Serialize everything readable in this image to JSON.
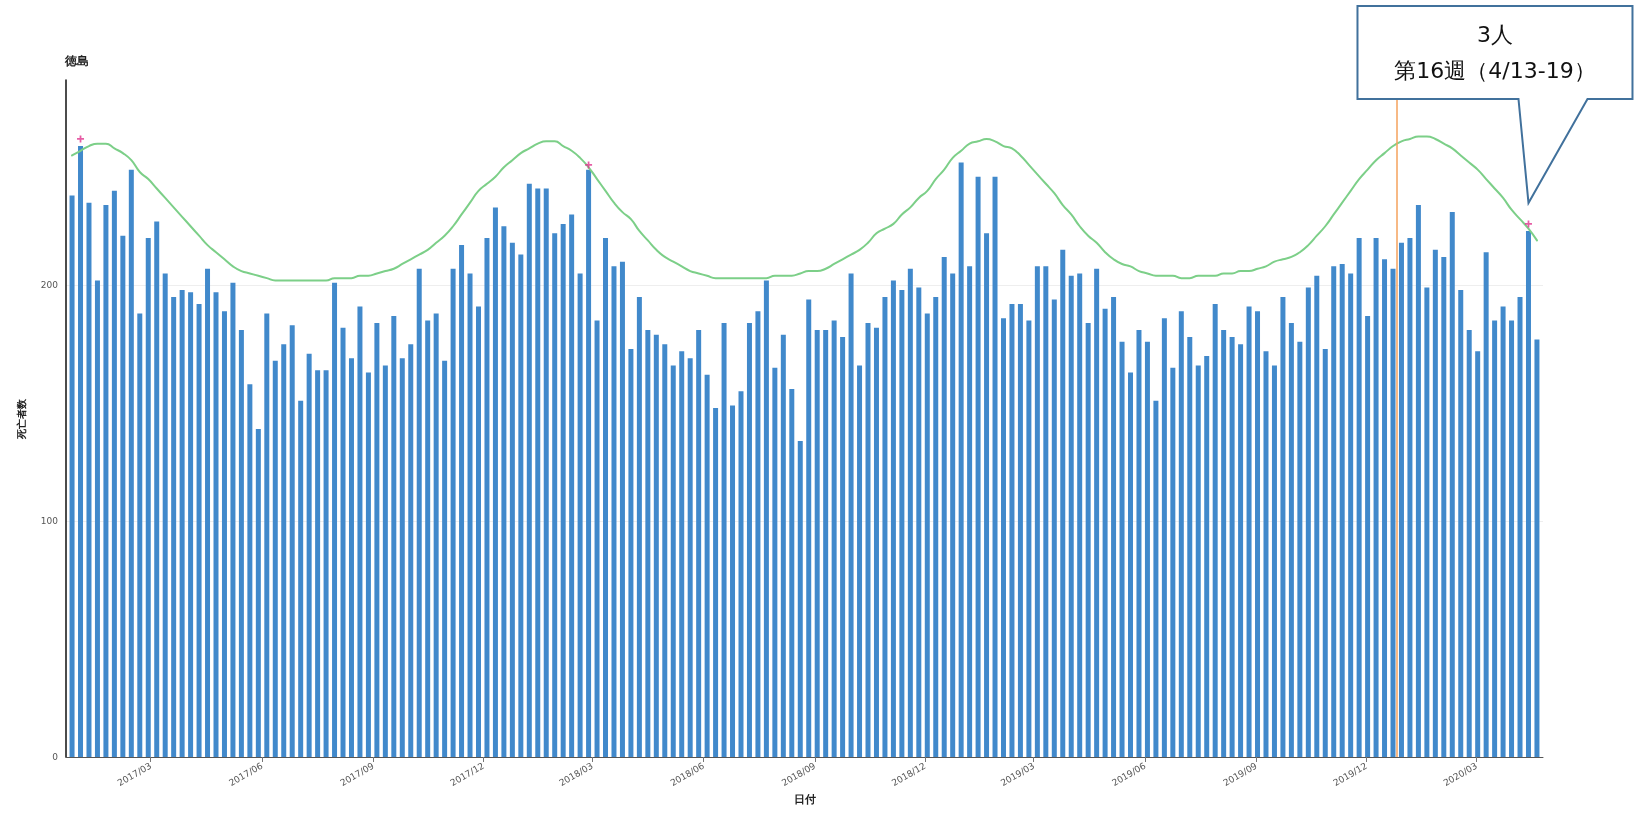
{
  "chart_data": {
    "type": "bar",
    "title": "徳島",
    "xlabel": "日付",
    "ylabel": "死亡者数",
    "x": [
      "2016-12-26",
      "2017-01-02",
      "2017-01-09",
      "2017-01-16",
      "2017-01-23",
      "2017-01-30",
      "2017-02-06",
      "2017-02-13",
      "2017-02-20",
      "2017-02-27",
      "2017-03-06",
      "2017-03-13",
      "2017-03-20",
      "2017-03-27",
      "2017-04-03",
      "2017-04-10",
      "2017-04-17",
      "2017-04-24",
      "2017-05-01",
      "2017-05-08",
      "2017-05-15",
      "2017-05-22",
      "2017-05-29",
      "2017-06-05",
      "2017-06-12",
      "2017-06-19",
      "2017-06-26",
      "2017-07-03",
      "2017-07-10",
      "2017-07-17",
      "2017-07-24",
      "2017-07-31",
      "2017-08-07",
      "2017-08-14",
      "2017-08-21",
      "2017-08-28",
      "2017-09-04",
      "2017-09-11",
      "2017-09-18",
      "2017-09-25",
      "2017-10-02",
      "2017-10-09",
      "2017-10-16",
      "2017-10-23",
      "2017-10-30",
      "2017-11-06",
      "2017-11-13",
      "2017-11-20",
      "2017-11-27",
      "2017-12-04",
      "2017-12-11",
      "2017-12-18",
      "2017-12-25",
      "2018-01-01",
      "2018-01-08",
      "2018-01-15",
      "2018-01-22",
      "2018-01-29",
      "2018-02-05",
      "2018-02-12",
      "2018-02-19",
      "2018-02-26",
      "2018-03-05",
      "2018-03-12",
      "2018-03-19",
      "2018-03-26",
      "2018-04-02",
      "2018-04-09",
      "2018-04-16",
      "2018-04-23",
      "2018-04-30",
      "2018-05-07",
      "2018-05-14",
      "2018-05-21",
      "2018-05-28",
      "2018-06-04",
      "2018-06-11",
      "2018-06-18",
      "2018-06-25",
      "2018-07-02",
      "2018-07-09",
      "2018-07-16",
      "2018-07-23",
      "2018-07-30",
      "2018-08-06",
      "2018-08-13",
      "2018-08-20",
      "2018-08-27",
      "2018-09-03",
      "2018-09-10",
      "2018-09-17",
      "2018-09-24",
      "2018-10-01",
      "2018-10-08",
      "2018-10-15",
      "2018-10-22",
      "2018-10-29",
      "2018-11-05",
      "2018-11-12",
      "2018-11-19",
      "2018-11-26",
      "2018-12-03",
      "2018-12-10",
      "2018-12-17",
      "2018-12-24",
      "2018-12-31",
      "2019-01-07",
      "2019-01-14",
      "2019-01-21",
      "2019-01-28",
      "2019-02-04",
      "2019-02-11",
      "2019-02-18",
      "2019-02-25",
      "2019-03-04",
      "2019-03-11",
      "2019-03-18",
      "2019-03-25",
      "2019-04-01",
      "2019-04-08",
      "2019-04-15",
      "2019-04-22",
      "2019-04-29",
      "2019-05-06",
      "2019-05-13",
      "2019-05-20",
      "2019-05-27",
      "2019-06-03",
      "2019-06-10",
      "2019-06-17",
      "2019-06-24",
      "2019-07-01",
      "2019-07-08",
      "2019-07-15",
      "2019-07-22",
      "2019-07-29",
      "2019-08-05",
      "2019-08-12",
      "2019-08-19",
      "2019-08-26",
      "2019-09-02",
      "2019-09-09",
      "2019-09-16",
      "2019-09-23",
      "2019-09-30",
      "2019-10-07",
      "2019-10-14",
      "2019-10-21",
      "2019-10-28",
      "2019-11-04",
      "2019-11-11",
      "2019-11-18",
      "2019-11-25",
      "2019-12-02",
      "2019-12-09",
      "2019-12-16",
      "2019-12-23",
      "2019-12-30",
      "2020-01-06",
      "2020-01-13",
      "2020-01-20",
      "2020-01-27",
      "2020-02-03",
      "2020-02-10",
      "2020-02-17",
      "2020-02-24",
      "2020-03-02",
      "2020-03-09",
      "2020-03-16",
      "2020-03-23",
      "2020-03-30",
      "2020-04-06",
      "2020-04-13",
      "2020-04-20"
    ],
    "series": [
      {
        "color": "#4189cb",
        "values": [
          238,
          259,
          235,
          202,
          234,
          240,
          221,
          249,
          188,
          220,
          227,
          205,
          195,
          198,
          197,
          192,
          207,
          197,
          189,
          201,
          181,
          158,
          139,
          188,
          168,
          175,
          183,
          151,
          171,
          164,
          164,
          201,
          182,
          169,
          191,
          163,
          184,
          166,
          187,
          169,
          175,
          207,
          185,
          188,
          168,
          207,
          217,
          205,
          191,
          220,
          233,
          225,
          218,
          213,
          243,
          241,
          241,
          222,
          226,
          230,
          205,
          249,
          185,
          220,
          208,
          210,
          173,
          195,
          181,
          179,
          175,
          166,
          172,
          169,
          181,
          162,
          148,
          184,
          149,
          155,
          184,
          189,
          202,
          165,
          179,
          156,
          134,
          194,
          181,
          181,
          185,
          178,
          205,
          166,
          184,
          182,
          195,
          202,
          198,
          207,
          199,
          188,
          195,
          212,
          205,
          252,
          208,
          246,
          222,
          246,
          186,
          192,
          192,
          185,
          208,
          208,
          194,
          215,
          204,
          205,
          184,
          207,
          190,
          195,
          176,
          163,
          181,
          176,
          151,
          186,
          165,
          189,
          178,
          166,
          170,
          192,
          181,
          178,
          175,
          191,
          189,
          172,
          166,
          195,
          184,
          176,
          199,
          204,
          173,
          208,
          209,
          205,
          220,
          187,
          220,
          211,
          207,
          218,
          220,
          234,
          199,
          215,
          212,
          231,
          198,
          181,
          172,
          214,
          185,
          191,
          185,
          195,
          223,
          177
        ]
      },
      {
        "type": "line",
        "color": "#7ccf88",
        "marker": "none",
        "values": [
          255,
          257,
          259,
          260,
          260,
          258,
          256,
          253,
          248,
          245,
          241,
          237,
          233,
          229,
          225,
          221,
          217,
          214,
          211,
          208,
          206,
          205,
          204,
          203,
          202,
          202,
          202,
          202,
          202,
          202,
          202,
          203,
          203,
          203,
          204,
          204,
          205,
          206,
          207,
          209,
          211,
          213,
          215,
          218,
          221,
          225,
          230,
          235,
          240,
          243,
          246,
          250,
          253,
          256,
          258,
          260,
          261,
          261,
          259,
          257,
          254,
          250,
          245,
          240,
          235,
          231,
          228,
          223,
          219,
          215,
          212,
          210,
          208,
          206,
          205,
          204,
          203,
          203,
          203,
          203,
          203,
          203,
          203,
          204,
          204,
          204,
          205,
          206,
          206,
          207,
          209,
          211,
          213,
          215,
          218,
          222,
          224,
          226,
          230,
          233,
          237,
          240,
          245,
          249,
          254,
          257,
          260,
          261,
          262,
          261,
          259,
          258,
          255,
          251,
          247,
          243,
          239,
          234,
          230,
          225,
          221,
          218,
          214,
          211,
          209,
          208,
          206,
          205,
          204,
          204,
          204,
          203,
          203,
          204,
          204,
          204,
          205,
          205,
          206,
          206,
          207,
          208,
          210,
          211,
          212,
          214,
          217,
          221,
          225,
          230,
          235,
          240,
          245,
          249,
          253,
          256,
          259,
          261,
          262,
          263,
          263,
          262,
          260,
          258,
          255,
          252,
          249,
          245,
          241,
          237,
          232,
          228,
          224,
          219
        ]
      },
      {
        "type": "scatter",
        "color": "#e0358f",
        "marker": "cross",
        "x": [
          "2017-01-02",
          "2018-02-26",
          "2020-04-13"
        ],
        "values": [
          262,
          251,
          226
        ]
      }
    ],
    "ylim": [
      0,
      287
    ],
    "yticks": [
      0,
      100,
      200
    ],
    "xlim": [
      "2016-12-21",
      "2020-04-25"
    ],
    "xticks": [
      {
        "value": "2017-03-01",
        "label": "2017/03"
      },
      {
        "value": "2017-06-01",
        "label": "2017/06"
      },
      {
        "value": "2017-09-01",
        "label": "2017/09"
      },
      {
        "value": "2017-12-01",
        "label": "2017/12"
      },
      {
        "value": "2018-03-01",
        "label": "2018/03"
      },
      {
        "value": "2018-06-01",
        "label": "2018/06"
      },
      {
        "value": "2018-09-01",
        "label": "2018/09"
      },
      {
        "value": "2018-12-01",
        "label": "2018/12"
      },
      {
        "value": "2019-03-01",
        "label": "2019/03"
      },
      {
        "value": "2019-06-01",
        "label": "2019/06"
      },
      {
        "value": "2019-09-01",
        "label": "2019/09"
      },
      {
        "value": "2019-12-01",
        "label": "2019/12"
      },
      {
        "value": "2020-03-01",
        "label": "2020/03"
      }
    ],
    "grid": "y",
    "ref_lines": [
      {
        "axis": "x",
        "value": "2019-12-26",
        "color": "#f5a25d"
      }
    ],
    "annotations": [
      "3人",
      "第16週（4/13-19）"
    ]
  }
}
